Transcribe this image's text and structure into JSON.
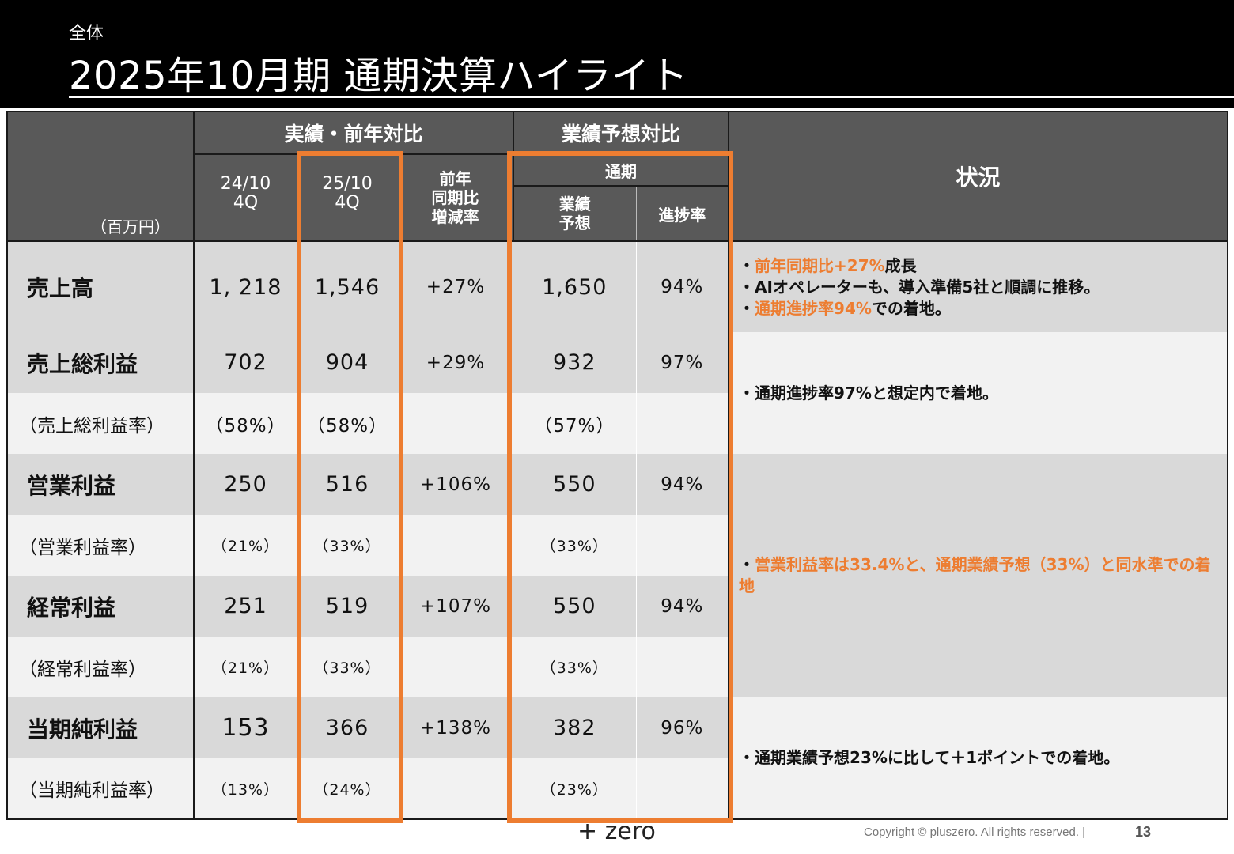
{
  "header": {
    "breadcrumb": "全体",
    "title": "2025年10月期 通期決算ハイライト"
  },
  "table": {
    "group_actual": "実績・前年対比",
    "group_forecast": "業績予想対比",
    "status_header": "状況",
    "unit": "（百万円）",
    "col_prev": "24/10\n4Q",
    "col_curr": "25/10\n4Q",
    "col_yoy": "前年\n同期比\n増減率",
    "col_fullyear": "通期",
    "col_forecast": "業績\n予想",
    "col_progress": "進捗率",
    "rows": [
      {
        "label": "売上高",
        "prev": "1, 218",
        "curr": "1,546",
        "yoy": "+27%",
        "forecast": "1,650",
        "progress": "94%"
      },
      {
        "label": "売上総利益",
        "prev": "702",
        "curr": "904",
        "yoy": "+29%",
        "forecast": "932",
        "progress": "97%"
      },
      {
        "label": "（売上総利益率）",
        "prev": "（58%）",
        "curr": "（58%）",
        "yoy": "",
        "forecast": "（57%）",
        "progress": ""
      },
      {
        "label": "営業利益",
        "prev": "250",
        "curr": "516",
        "yoy": "+106%",
        "forecast": "550",
        "progress": "94%"
      },
      {
        "label": "（営業利益率）",
        "prev": "（21%）",
        "curr": "（33%）",
        "yoy": "",
        "forecast": "（33%）",
        "progress": ""
      },
      {
        "label": "経常利益",
        "prev": "251",
        "curr": "519",
        "yoy": "+107%",
        "forecast": "550",
        "progress": "94%"
      },
      {
        "label": "（経常利益率）",
        "prev": "（21%）",
        "curr": "（33%）",
        "yoy": "",
        "forecast": "（33%）",
        "progress": ""
      },
      {
        "label": "当期純利益",
        "prev": "153",
        "curr": "366",
        "yoy": "+138%",
        "forecast": "382",
        "progress": "96%"
      },
      {
        "label": "（当期純利益率）",
        "prev": "（13%）",
        "curr": "（24%）",
        "yoy": "",
        "forecast": "（23%）",
        "progress": ""
      }
    ],
    "status": {
      "sales_1a": "・",
      "sales_1b": "前年同期比+27%",
      "sales_1c": "成長",
      "sales_2": "・AIオペレーターも、導入準備5社と順調に推移。",
      "sales_3a": "・",
      "sales_3b": "通期進捗率94%",
      "sales_3c": "での着地。",
      "gross": "・通期進捗率97%と想定内で着地。",
      "op_a": "・",
      "op_b": "営業利益率は33.4%と、通期業績予想（33%）と同水準での着地",
      "net": "・通期業績予想23%に比して＋1ポイントでの着地。"
    }
  },
  "colors": {
    "accent": "#ed7d31",
    "header_bg": "#000000",
    "table_header": "#595959",
    "row_dark": "#d9d9d9",
    "row_light": "#f2f2f2"
  },
  "footer": {
    "logo": "+ zero",
    "copyright": "Copyright © pluszero. All rights reserved.   |",
    "page": "13"
  }
}
